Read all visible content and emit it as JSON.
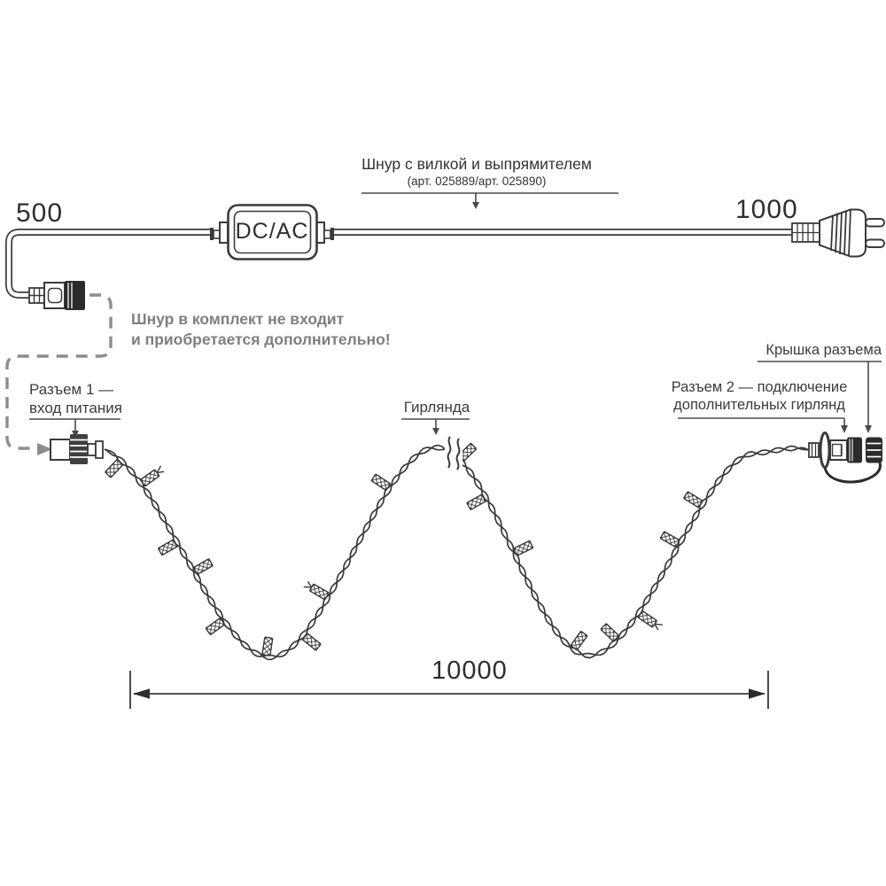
{
  "labels": {
    "cord": {
      "title": "Шнур с вилкой и выпрямителем",
      "subtitle": "(арт. 025889/арт. 025890)"
    },
    "note": {
      "line1": "Шнур в комплект не входит",
      "line2": "и приобретается дополнительно!"
    },
    "connector1": {
      "line1": "Разъем 1 —",
      "line2": "вход питания"
    },
    "connector2": {
      "line1": "Разъем 2 — подключение",
      "line2": "дополнительных гирлянд"
    },
    "cap": "Крышка разъема",
    "garland": "Гирлянда",
    "converter": "DC/AC"
  },
  "dimensions": {
    "cord_left_mm": "500",
    "cord_right_mm": "1000",
    "garland_length_mm": "10000"
  },
  "colors": {
    "line": "#3a3a3a",
    "leader": "#4a4a4a",
    "gray_note": "#7d7f80",
    "dashed_gray": "#8c8c8c",
    "black_fill": "#2b2b2b"
  }
}
